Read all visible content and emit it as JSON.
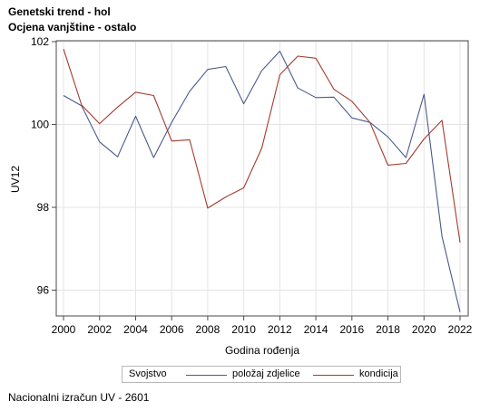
{
  "header": {
    "title": "Genetski trend - hol",
    "subtitle": "Ocjena vanjštine - ostalo"
  },
  "footnote": "Nacionalni izračun UV - 2601",
  "chart_data": {
    "type": "line",
    "xlabel": "Godina rođenja",
    "ylabel": "UV12",
    "xlim": [
      2000,
      2022
    ],
    "ylim": [
      95.4,
      102
    ],
    "xticks": [
      "2000",
      "2002",
      "2004",
      "2006",
      "2008",
      "2010",
      "2012",
      "2014",
      "2016",
      "2018",
      "2020",
      "2022"
    ],
    "yticks": [
      "96",
      "98",
      "100",
      "102"
    ],
    "grid": true,
    "legend": {
      "title": "Svojstvo",
      "placement": "bottom-center"
    },
    "x": [
      2000,
      2001,
      2002,
      2003,
      2004,
      2005,
      2006,
      2007,
      2008,
      2009,
      2010,
      2011,
      2012,
      2013,
      2014,
      2015,
      2016,
      2017,
      2018,
      2019,
      2020,
      2021,
      2022
    ],
    "series": [
      {
        "name": "položaj zdjelice",
        "color": "#4a5a8c",
        "values": [
          100.7,
          100.45,
          99.58,
          99.22,
          100.2,
          99.2,
          100.05,
          100.8,
          101.33,
          101.4,
          100.5,
          101.3,
          101.77,
          100.88,
          100.65,
          100.66,
          100.16,
          100.05,
          99.7,
          99.2,
          100.73,
          97.3,
          95.47
        ]
      },
      {
        "name": "kondicija",
        "color": "#a53a2e",
        "values": [
          101.82,
          100.47,
          100.02,
          100.42,
          100.78,
          100.7,
          99.6,
          99.63,
          97.98,
          98.25,
          98.47,
          99.43,
          101.2,
          101.65,
          101.6,
          100.85,
          100.56,
          100.05,
          99.02,
          99.06,
          99.65,
          100.1,
          97.15
        ]
      }
    ]
  }
}
